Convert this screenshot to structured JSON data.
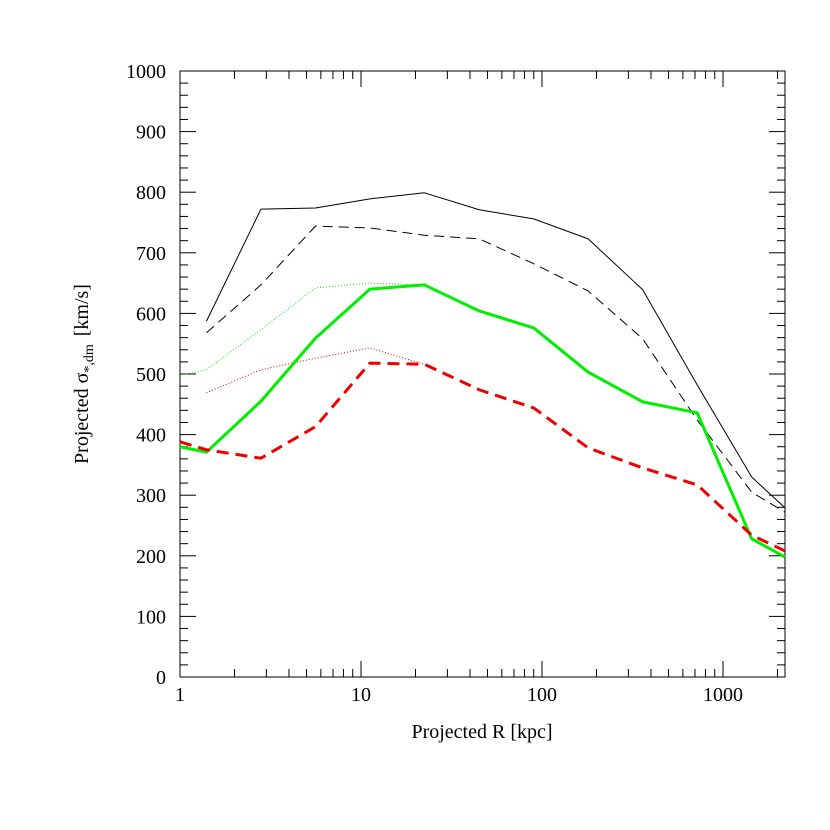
{
  "chart_data": {
    "type": "line",
    "xlabel": "Projected R [kpc]",
    "ylabel": {
      "text": "Projected σ",
      "sub": "*,dm",
      "unit": "[km/s]"
    },
    "xscale": "log",
    "xlim": [
      1,
      2200
    ],
    "ylim": [
      0,
      1000
    ],
    "xticks": [
      1,
      10,
      100,
      1000
    ],
    "xminorticks": [
      2,
      3,
      4,
      5,
      6,
      7,
      8,
      9,
      20,
      30,
      40,
      50,
      60,
      70,
      80,
      90,
      200,
      300,
      400,
      500,
      600,
      700,
      800,
      900,
      2000
    ],
    "yticks": [
      0,
      100,
      200,
      300,
      400,
      500,
      600,
      700,
      800,
      900,
      1000
    ],
    "yminorticks": [
      20,
      40,
      60,
      80,
      120,
      140,
      160,
      180,
      220,
      240,
      260,
      280,
      320,
      340,
      360,
      380,
      420,
      440,
      460,
      480,
      520,
      540,
      560,
      580,
      620,
      640,
      660,
      680,
      720,
      740,
      760,
      780,
      820,
      840,
      860,
      880,
      920,
      940,
      960,
      980
    ],
    "series": [
      {
        "color": "#000000",
        "width": 1,
        "dash": "none",
        "x": [
          1.4,
          2.8,
          5.6,
          11.2,
          22.4,
          45,
          90,
          180,
          360,
          720,
          1440,
          2200
        ],
        "values": [
          587,
          772,
          774,
          789,
          799,
          771,
          756,
          723,
          639,
          482,
          330,
          279
        ]
      },
      {
        "color": "#000000",
        "width": 1,
        "dash": "10 6",
        "x": [
          1.4,
          2.8,
          5.6,
          11.2,
          22.4,
          45,
          90,
          180,
          360,
          720,
          1440,
          2200
        ],
        "values": [
          568,
          647,
          744,
          741,
          729,
          723,
          682,
          637,
          558,
          424,
          305,
          272
        ]
      },
      {
        "color": "#00ee00",
        "width": 1,
        "dash": "1 2",
        "x": [
          1,
          1.4,
          2.8,
          5.6,
          11.2,
          22.4
        ],
        "values": [
          498,
          507,
          573,
          642,
          650,
          647
        ]
      },
      {
        "color": "#ee0000",
        "width": 1,
        "dash": "1 2",
        "x": [
          1.4,
          2.8,
          5.6,
          11.2,
          22.4
        ],
        "values": [
          469,
          507,
          526,
          543,
          516
        ]
      },
      {
        "color": "#00ee00",
        "width": 3,
        "dash": "none",
        "x": [
          1,
          1.4,
          2.8,
          5.6,
          11.2,
          22.4,
          45,
          90,
          180,
          360,
          720,
          1440,
          2200
        ],
        "values": [
          380,
          371,
          455,
          559,
          640,
          647,
          604,
          576,
          503,
          454,
          436,
          228,
          198
        ]
      },
      {
        "color": "#ee0000",
        "width": 3,
        "dash": "12 7",
        "x": [
          1,
          1.4,
          2.8,
          5.6,
          11.2,
          22.4,
          45,
          90,
          180,
          360,
          720,
          1440,
          2200
        ],
        "values": [
          388,
          375,
          361,
          413,
          518,
          516,
          474,
          444,
          378,
          345,
          317,
          234,
          208
        ]
      }
    ]
  }
}
